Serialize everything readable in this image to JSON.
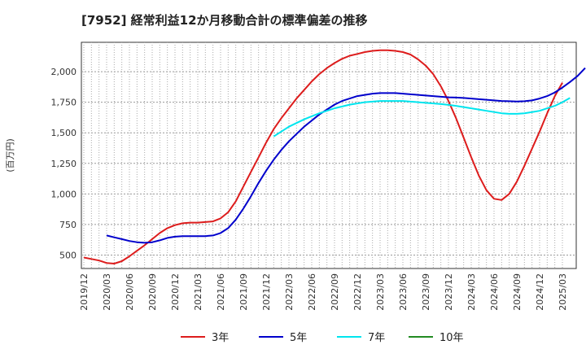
{
  "chart_data": {
    "type": "line",
    "title": "[7952]  経常利益12か月移動合計の標準偏差の推移",
    "ylabel": "(百万円)",
    "xlabel": "",
    "ylim": [
      390,
      2240
    ],
    "yticks": [
      500,
      750,
      1000,
      1250,
      1500,
      1750,
      2000
    ],
    "ytick_labels": [
      "500",
      "750",
      "1,000",
      "1,250",
      "1,500",
      "1,750",
      "2,000"
    ],
    "xticks": [
      "2019/12",
      "2020/03",
      "2020/06",
      "2020/09",
      "2020/12",
      "2021/03",
      "2021/06",
      "2021/09",
      "2021/12",
      "2022/03",
      "2022/06",
      "2022/09",
      "2022/12",
      "2023/03",
      "2023/06",
      "2023/09",
      "2023/12",
      "2024/03",
      "2024/06",
      "2024/09",
      "2024/12",
      "2025/03"
    ],
    "x_months": [
      "2019/12",
      "2020/01",
      "2020/02",
      "2020/03",
      "2020/04",
      "2020/05",
      "2020/06",
      "2020/07",
      "2020/08",
      "2020/09",
      "2020/10",
      "2020/11",
      "2020/12",
      "2021/01",
      "2021/02",
      "2021/03",
      "2021/04",
      "2021/05",
      "2021/06",
      "2021/07",
      "2021/08",
      "2021/09",
      "2021/10",
      "2021/11",
      "2021/12",
      "2022/01",
      "2022/02",
      "2022/03",
      "2022/04",
      "2022/05",
      "2022/06",
      "2022/07",
      "2022/08",
      "2022/09",
      "2022/10",
      "2022/11",
      "2022/12",
      "2023/01",
      "2023/02",
      "2023/03",
      "2023/04",
      "2023/05",
      "2023/06",
      "2023/07",
      "2023/08",
      "2023/09",
      "2023/10",
      "2023/11",
      "2023/12",
      "2024/01",
      "2024/02",
      "2024/03",
      "2024/04",
      "2024/05",
      "2024/06",
      "2024/07",
      "2024/08",
      "2024/09",
      "2024/10",
      "2024/11",
      "2024/12"
    ],
    "grid": true,
    "legend_position": "bottom",
    "series": [
      {
        "name": "3年",
        "color": "#dd1c1c",
        "start": "2019/12",
        "values": [
          480,
          468,
          455,
          435,
          430,
          450,
          490,
          535,
          580,
          630,
          680,
          720,
          745,
          760,
          765,
          765,
          770,
          775,
          800,
          850,
          940,
          1060,
          1180,
          1300,
          1420,
          1530,
          1620,
          1700,
          1780,
          1850,
          1920,
          1980,
          2030,
          2070,
          2105,
          2130,
          2145,
          2160,
          2170,
          2175,
          2175,
          2170,
          2160,
          2140,
          2100,
          2050,
          1980,
          1880,
          1760,
          1620,
          1460,
          1300,
          1150,
          1030,
          960,
          950,
          1000,
          1100,
          1230,
          1370,
          1510,
          1660,
          1800,
          1910
        ]
      },
      {
        "name": "5年",
        "color": "#0000cc",
        "start": "2020/03",
        "values": [
          660,
          645,
          630,
          615,
          605,
          600,
          605,
          620,
          640,
          650,
          655,
          655,
          655,
          655,
          660,
          680,
          720,
          790,
          880,
          980,
          1090,
          1190,
          1280,
          1360,
          1430,
          1490,
          1550,
          1600,
          1650,
          1690,
          1730,
          1760,
          1780,
          1800,
          1810,
          1820,
          1825,
          1825,
          1825,
          1820,
          1815,
          1810,
          1805,
          1800,
          1795,
          1790,
          1788,
          1785,
          1780,
          1775,
          1770,
          1765,
          1760,
          1758,
          1756,
          1758,
          1765,
          1780,
          1800,
          1830,
          1870,
          1915,
          1965,
          2030
        ]
      },
      {
        "name": "7年",
        "color": "#00e5ee",
        "start": "2022/01",
        "values": [
          1470,
          1510,
          1550,
          1580,
          1610,
          1635,
          1660,
          1680,
          1700,
          1715,
          1730,
          1740,
          1750,
          1755,
          1760,
          1760,
          1760,
          1760,
          1755,
          1750,
          1745,
          1740,
          1735,
          1728,
          1720,
          1710,
          1700,
          1690,
          1680,
          1670,
          1660,
          1655,
          1655,
          1660,
          1670,
          1680,
          1700,
          1720,
          1750,
          1785
        ]
      },
      {
        "name": "10年",
        "color": "#228b22",
        "start": "2019/12",
        "values": []
      }
    ]
  }
}
